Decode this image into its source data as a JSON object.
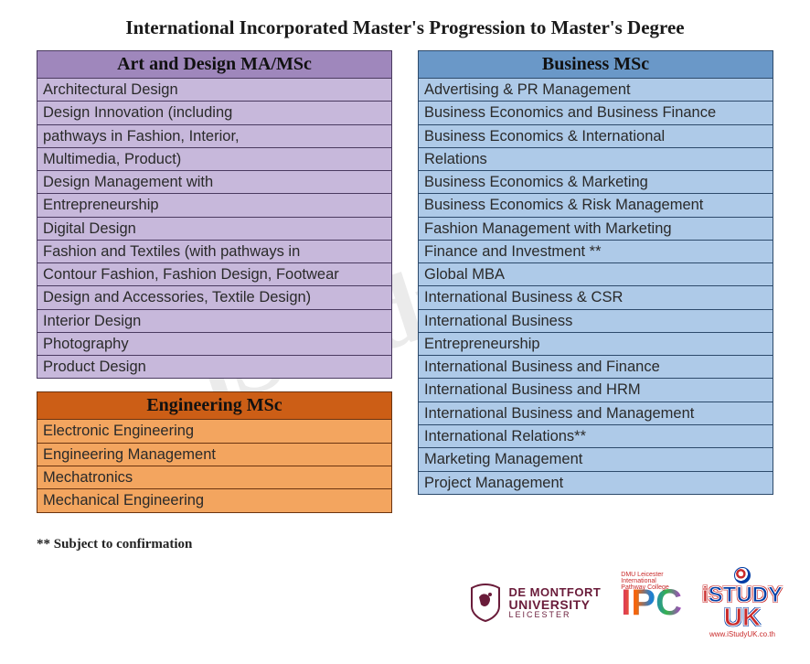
{
  "page_title": "International Incorporated Master's Progression to Master's Degree",
  "watermark_text": "iStudyUK",
  "footnote": "** Subject to confirmation",
  "tables": {
    "art_design": {
      "title": "Art and Design MA/MSc",
      "header_bg": "#9f87bc",
      "row_bg": "#c7b8db",
      "border_color": "#4a3a60",
      "rows": [
        "Architectural Design",
        "Design Innovation (including",
        "pathways in Fashion, Interior,",
        "Multimedia, Product)",
        "Design Management with",
        "Entrepreneurship",
        "Digital Design",
        "Fashion and Textiles (with pathways in",
        "Contour Fashion, Fashion Design, Footwear",
        "Design and Accessories, Textile Design)",
        "Interior Design",
        "Photography",
        "Product Design"
      ]
    },
    "engineering": {
      "title": "Engineering MSc",
      "header_bg": "#cc5e16",
      "row_bg": "#f3a55f",
      "border_color": "#6b3410",
      "rows": [
        "Electronic Engineering",
        "Engineering Management",
        "Mechatronics",
        "Mechanical Engineering"
      ]
    },
    "business": {
      "title": "Business MSc",
      "header_bg": "#6a98c8",
      "row_bg": "#aecae8",
      "border_color": "#2d4a6b",
      "rows": [
        "Advertising & PR Management",
        "Business Economics and Business Finance",
        "Business Economics & International",
        "Relations",
        "Business Economics & Marketing",
        "Business Economics & Risk Management",
        "Fashion Management with Marketing",
        "Finance and Investment **",
        "Global MBA",
        "International Business & CSR",
        "International Business",
        "Entrepreneurship",
        "International Business and Finance",
        "International Business and HRM",
        "International Business and Management",
        "International Relations**",
        "Marketing Management",
        "Project Management"
      ]
    }
  },
  "logos": {
    "dmu": {
      "line1": "DE MONTFORT",
      "line2": "UNIVERSITY",
      "line3": "LEICESTER",
      "color": "#6a1c3a"
    },
    "ipc": {
      "text": "IPC",
      "subtitle": "DMU Leicester International Pathway College"
    },
    "istudy": {
      "row1_prefix": "i",
      "row1_rest": "STUDY",
      "row2": "UK",
      "url": "www.iStudyUK.co.th"
    }
  }
}
